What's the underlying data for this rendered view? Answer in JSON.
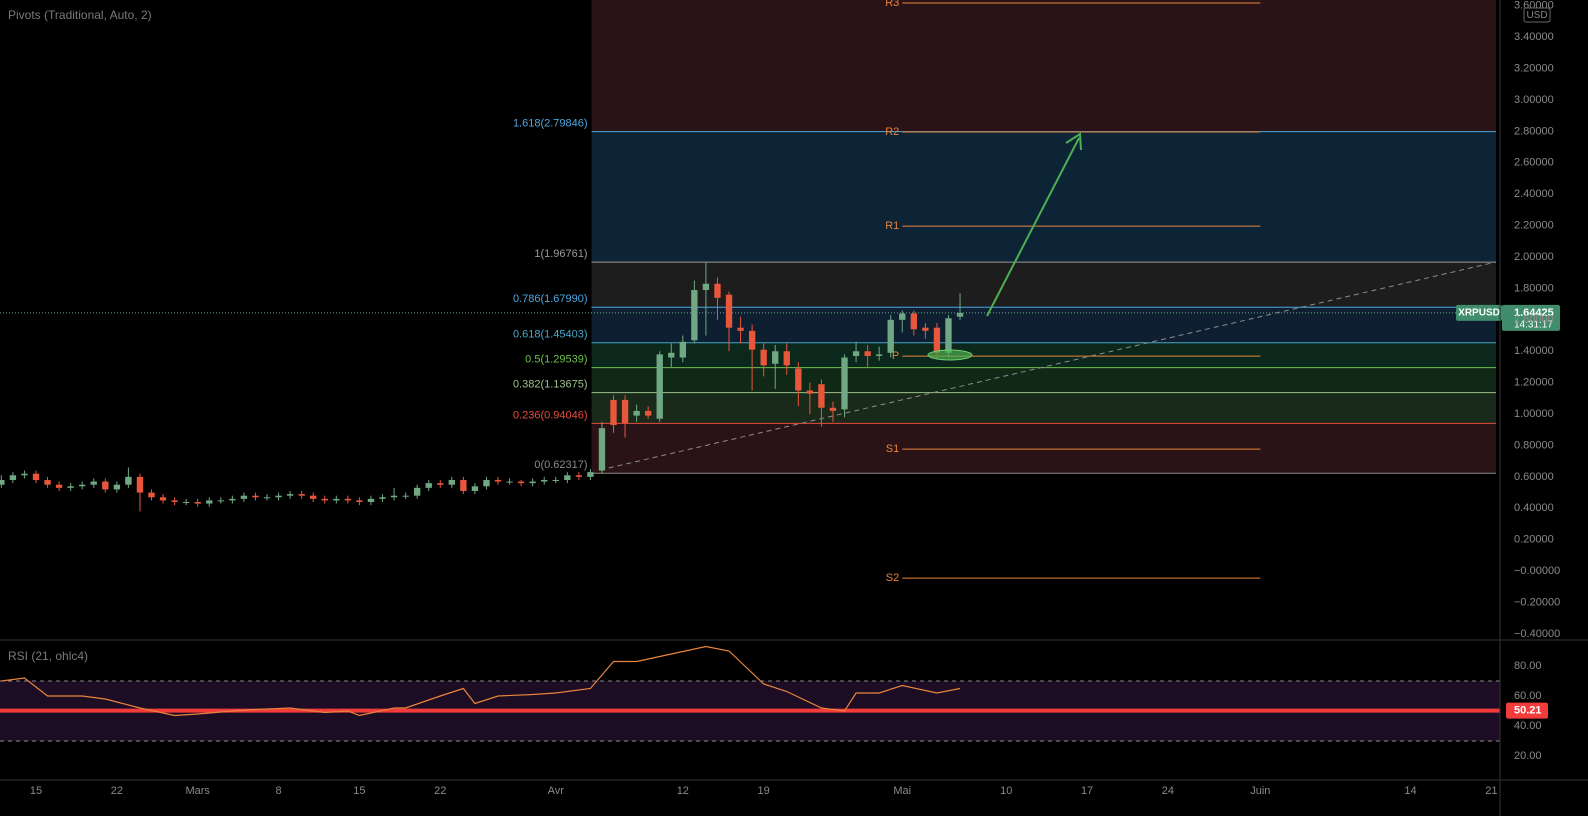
{
  "chart_data": {
    "type": "candlestick",
    "title": "Pivots (Traditional, Auto, 2)",
    "symbol": "XRPUSD",
    "currency": "USD",
    "last_price": 1.64425,
    "countdown": "14:31:17",
    "up_color": "#6fa883",
    "down_color": "#e8563c",
    "xlim": [
      -3.117,
      126.75
    ],
    "xticks": [
      {
        "value": 0,
        "label": "15"
      },
      {
        "value": 7,
        "label": "22"
      },
      {
        "value": 14,
        "label": "Mars"
      },
      {
        "value": 21,
        "label": "8"
      },
      {
        "value": 28,
        "label": "15"
      },
      {
        "value": 35,
        "label": "22"
      },
      {
        "value": 45,
        "label": "Avr"
      },
      {
        "value": 56,
        "label": "12"
      },
      {
        "value": 63,
        "label": "19"
      },
      {
        "value": 75,
        "label": "Mai"
      },
      {
        "value": 84,
        "label": "10"
      },
      {
        "value": 91,
        "label": "17"
      },
      {
        "value": 98,
        "label": "24"
      },
      {
        "value": 106,
        "label": "Juin"
      },
      {
        "value": 119,
        "label": "14"
      },
      {
        "value": 126,
        "label": "21"
      }
    ],
    "ylim": [
      -0.439,
      3.637
    ],
    "yticks": [
      {
        "value": -0.4,
        "label": "−0.40000"
      },
      {
        "value": -0.2,
        "label": "−0.20000"
      },
      {
        "value": 0,
        "label": "−0.00000"
      },
      {
        "value": 0.2,
        "label": "0.20000"
      },
      {
        "value": 0.4,
        "label": "0.40000"
      },
      {
        "value": 0.6,
        "label": "0.60000"
      },
      {
        "value": 0.8,
        "label": "0.80000"
      },
      {
        "value": 1.0,
        "label": "1.00000"
      },
      {
        "value": 1.2,
        "label": "1.20000"
      },
      {
        "value": 1.4,
        "label": "1.40000"
      },
      {
        "value": 1.6,
        "label": "1.60000"
      },
      {
        "value": 1.8,
        "label": "1.80000"
      },
      {
        "value": 2.0,
        "label": "2.00000"
      },
      {
        "value": 2.2,
        "label": "2.20000"
      },
      {
        "value": 2.4,
        "label": "2.40000"
      },
      {
        "value": 2.6,
        "label": "2.60000"
      },
      {
        "value": 2.8,
        "label": "2.80000"
      },
      {
        "value": 3.0,
        "label": "3.00000"
      },
      {
        "value": 3.2,
        "label": "3.20000"
      },
      {
        "value": 3.4,
        "label": "3.40000"
      },
      {
        "value": 3.6,
        "label": "3.60000"
      }
    ],
    "x": [
      -3,
      -2,
      -1,
      0,
      1,
      2,
      3,
      4,
      5,
      6,
      7,
      8,
      9,
      10,
      11,
      12,
      13,
      14,
      15,
      16,
      17,
      18,
      19,
      20,
      21,
      22,
      23,
      24,
      25,
      26,
      27,
      28,
      29,
      30,
      31,
      32,
      33,
      34,
      35,
      36,
      37,
      38,
      39,
      40,
      41,
      42,
      43,
      44,
      45,
      46,
      47,
      48,
      49,
      50,
      51,
      52,
      53,
      54,
      55,
      56,
      57,
      58,
      59,
      60,
      61,
      62,
      63,
      64,
      65,
      66,
      67,
      68,
      69,
      70,
      71,
      72,
      73,
      74,
      75,
      76,
      77,
      78,
      79,
      80
    ],
    "open": [
      0.55,
      0.58,
      0.61,
      0.62,
      0.58,
      0.55,
      0.53,
      0.54,
      0.55,
      0.57,
      0.52,
      0.55,
      0.6,
      0.5,
      0.47,
      0.45,
      0.44,
      0.44,
      0.43,
      0.45,
      0.45,
      0.46,
      0.48,
      0.47,
      0.47,
      0.48,
      0.49,
      0.48,
      0.46,
      0.45,
      0.46,
      0.45,
      0.44,
      0.46,
      0.47,
      0.48,
      0.48,
      0.53,
      0.56,
      0.55,
      0.58,
      0.51,
      0.54,
      0.58,
      0.57,
      0.57,
      0.56,
      0.57,
      0.58,
      0.58,
      0.61,
      0.6,
      0.64,
      1.09,
      1.09,
      0.99,
      1.02,
      0.97,
      1.36,
      1.36,
      1.47,
      1.79,
      1.83,
      1.76,
      1.55,
      1.53,
      1.41,
      1.32,
      1.4,
      1.29,
      1.15,
      1.19,
      1.04,
      1.03,
      1.37,
      1.4,
      1.37,
      1.39,
      1.6,
      1.64,
      1.55,
      1.55,
      1.39,
      1.62
    ],
    "high": [
      0.61,
      0.63,
      0.64,
      0.64,
      0.6,
      0.57,
      0.56,
      0.57,
      0.59,
      0.59,
      0.57,
      0.66,
      0.62,
      0.52,
      0.49,
      0.47,
      0.46,
      0.46,
      0.47,
      0.47,
      0.48,
      0.5,
      0.5,
      0.49,
      0.5,
      0.51,
      0.51,
      0.5,
      0.48,
      0.48,
      0.48,
      0.47,
      0.48,
      0.49,
      0.53,
      0.5,
      0.55,
      0.58,
      0.58,
      0.6,
      0.6,
      0.56,
      0.6,
      0.6,
      0.59,
      0.58,
      0.59,
      0.6,
      0.6,
      0.63,
      0.63,
      0.65,
      0.95,
      1.12,
      1.12,
      1.06,
      1.05,
      1.4,
      1.45,
      1.5,
      1.85,
      1.97,
      1.87,
      1.78,
      1.62,
      1.57,
      1.45,
      1.44,
      1.45,
      1.33,
      1.2,
      1.22,
      1.08,
      1.38,
      1.46,
      1.44,
      1.43,
      1.63,
      1.66,
      1.66,
      1.58,
      1.58,
      1.63,
      1.77
    ],
    "low": [
      0.53,
      0.56,
      0.59,
      0.56,
      0.53,
      0.51,
      0.51,
      0.52,
      0.53,
      0.5,
      0.5,
      0.53,
      0.38,
      0.45,
      0.43,
      0.42,
      0.42,
      0.41,
      0.41,
      0.43,
      0.43,
      0.44,
      0.45,
      0.45,
      0.45,
      0.46,
      0.46,
      0.44,
      0.43,
      0.43,
      0.43,
      0.42,
      0.42,
      0.44,
      0.45,
      0.46,
      0.46,
      0.51,
      0.53,
      0.53,
      0.49,
      0.49,
      0.52,
      0.55,
      0.55,
      0.54,
      0.54,
      0.55,
      0.56,
      0.56,
      0.58,
      0.58,
      0.62,
      0.88,
      0.85,
      0.95,
      0.97,
      0.95,
      1.3,
      1.33,
      1.45,
      1.5,
      1.6,
      1.4,
      1.45,
      1.15,
      1.24,
      1.16,
      1.25,
      1.05,
      1.0,
      0.92,
      0.95,
      0.98,
      1.33,
      1.3,
      1.34,
      1.36,
      1.52,
      1.5,
      1.48,
      1.35,
      1.36,
      1.6
    ],
    "close": [
      0.58,
      0.61,
      0.62,
      0.58,
      0.55,
      0.53,
      0.54,
      0.55,
      0.57,
      0.52,
      0.55,
      0.6,
      0.5,
      0.47,
      0.45,
      0.44,
      0.44,
      0.43,
      0.45,
      0.45,
      0.46,
      0.48,
      0.47,
      0.47,
      0.48,
      0.49,
      0.48,
      0.46,
      0.45,
      0.46,
      0.45,
      0.44,
      0.46,
      0.47,
      0.48,
      0.48,
      0.53,
      0.56,
      0.55,
      0.58,
      0.51,
      0.54,
      0.58,
      0.57,
      0.57,
      0.56,
      0.57,
      0.58,
      0.58,
      0.61,
      0.6,
      0.63,
      0.91,
      0.93,
      0.94,
      1.02,
      0.99,
      1.38,
      1.39,
      1.46,
      1.79,
      1.83,
      1.74,
      1.55,
      1.53,
      1.41,
      1.31,
      1.4,
      1.31,
      1.15,
      1.13,
      1.04,
      1.02,
      1.36,
      1.4,
      1.37,
      1.38,
      1.6,
      1.64,
      1.54,
      1.53,
      1.39,
      1.61,
      1.64425
    ],
    "fib": {
      "x_range": [
        48.1,
        126.4
      ],
      "above_color": "#2a1316",
      "levels": [
        {
          "label": "1.618(2.79846)",
          "value": 2.79846,
          "color": "#4ea6e0",
          "zone": "#0c2435"
        },
        {
          "label": "1(1.96761)",
          "value": 1.96761,
          "color": "#9a9a9a",
          "zone": "#1d1d1d"
        },
        {
          "label": "0.786(1.67990)",
          "value": 1.6799,
          "color": "#4ea6e0",
          "zone": "#0d1f30"
        },
        {
          "label": "0.618(1.45403)",
          "value": 1.45403,
          "color": "#48a6c8",
          "zone": "#0c271b"
        },
        {
          "label": "0.5(1.29539)",
          "value": 1.29539,
          "color": "#6fbf4f",
          "zone": "#102816"
        },
        {
          "label": "0.382(1.13675)",
          "value": 1.13675,
          "color": "#9cc08a",
          "zone": "#19291a"
        },
        {
          "label": "0.236(0.94046)",
          "value": 0.94046,
          "color": "#e84c3d",
          "zone": "#2a1316"
        },
        {
          "label": "0(0.62317)",
          "value": 0.62317,
          "color": "#8a8a8a"
        }
      ]
    },
    "pivots": {
      "x_range": [
        75,
        106
      ],
      "color": "#e8843c",
      "levels": [
        {
          "label": "R3",
          "value": 3.618
        },
        {
          "label": "R2",
          "value": 2.796
        },
        {
          "label": "R1",
          "value": 2.197
        },
        {
          "label": "P",
          "value": 1.369
        },
        {
          "label": "S1",
          "value": 0.777
        },
        {
          "label": "S2",
          "value": -0.045
        }
      ]
    },
    "rsi": {
      "title": "RSI (21, ohlc4)",
      "color": "#e8843c",
      "ylim": [
        4,
        97.33
      ],
      "yticks": [
        {
          "value": 20,
          "label": "20.00"
        },
        {
          "value": 40,
          "label": "40.00"
        },
        {
          "value": 60,
          "label": "60.00"
        },
        {
          "value": 80,
          "label": "80.00"
        }
      ],
      "bands": [
        30,
        70
      ],
      "level": 50.21,
      "x": [
        -3,
        -1,
        1,
        4,
        6,
        9,
        12,
        14,
        17,
        19,
        22,
        25,
        27,
        28,
        31,
        32,
        35,
        37,
        38,
        40,
        43,
        45,
        48,
        50,
        52,
        55,
        58,
        60,
        63,
        65,
        68,
        70,
        71,
        73,
        75,
        78,
        80
      ],
      "values": [
        70,
        72,
        60,
        60,
        58,
        52,
        47,
        48,
        50,
        51,
        52,
        49,
        50,
        47,
        52,
        52,
        60,
        65,
        55,
        60,
        61,
        62,
        65,
        83,
        83,
        88,
        93,
        90,
        68,
        63,
        52,
        50,
        62,
        62,
        67,
        62,
        65
      ]
    }
  }
}
